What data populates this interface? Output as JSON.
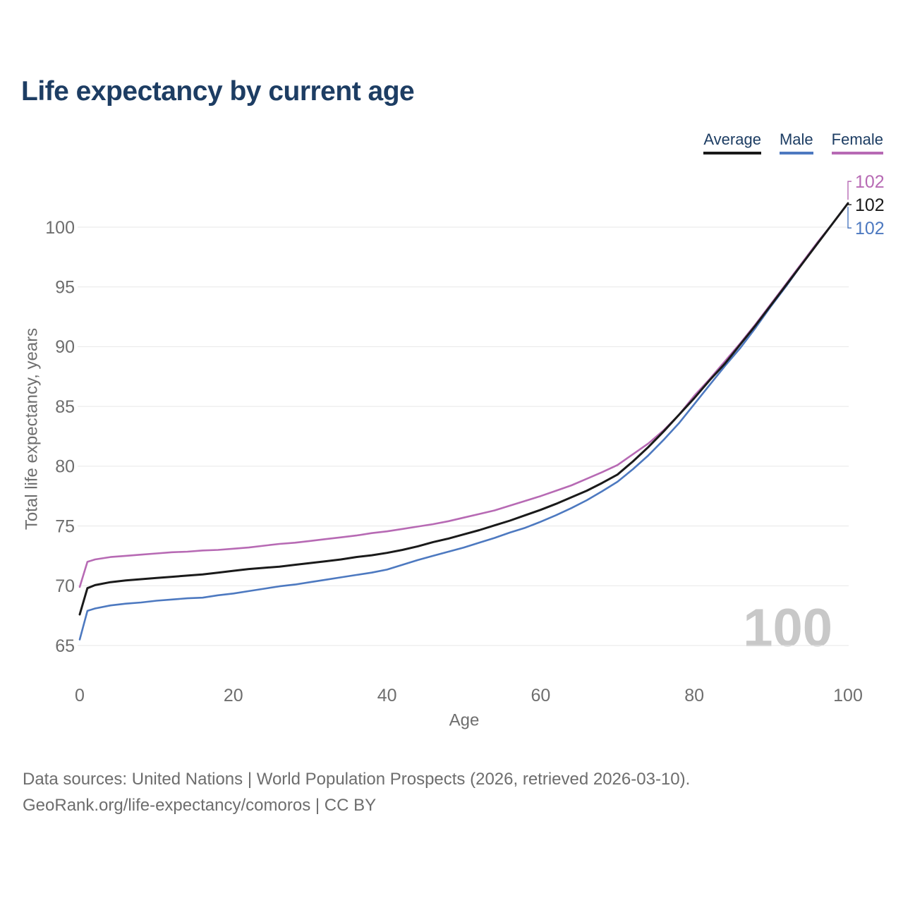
{
  "header": {
    "title": "Life expectancy by current age"
  },
  "legend": {
    "items": [
      {
        "label": "Average",
        "color": "#1a1a1a"
      },
      {
        "label": "Male",
        "color": "#4d79c0"
      },
      {
        "label": "Female",
        "color": "#b76ab4"
      }
    ]
  },
  "chart_data": {
    "type": "line",
    "title": "Life expectancy by current age",
    "xlabel": "Age",
    "ylabel": "Total life expectancy, years",
    "xticks": [
      0,
      20,
      40,
      60,
      80,
      100
    ],
    "yticks": [
      65,
      70,
      75,
      80,
      85,
      90,
      95,
      100
    ],
    "xlim": [
      0,
      100
    ],
    "ylim": [
      65,
      102
    ],
    "grid": "horizontal",
    "legend_position": "top-right",
    "watermark": "100",
    "x": [
      0,
      1,
      2,
      4,
      6,
      8,
      10,
      12,
      14,
      16,
      18,
      20,
      22,
      24,
      26,
      28,
      30,
      32,
      34,
      36,
      38,
      40,
      42,
      44,
      46,
      48,
      50,
      52,
      54,
      56,
      58,
      60,
      62,
      64,
      66,
      68,
      70,
      72,
      74,
      76,
      78,
      80,
      82,
      84,
      86,
      88,
      90,
      92,
      94,
      96,
      98,
      100
    ],
    "series": [
      {
        "name": "Average",
        "color": "#1a1a1a",
        "end_label": "102",
        "values": [
          67.6,
          69.8,
          70.05,
          70.3,
          70.45,
          70.55,
          70.65,
          70.75,
          70.85,
          70.95,
          71.1,
          71.25,
          71.4,
          71.5,
          71.6,
          71.75,
          71.9,
          72.05,
          72.2,
          72.4,
          72.55,
          72.75,
          73.0,
          73.3,
          73.65,
          73.95,
          74.3,
          74.65,
          75.05,
          75.45,
          75.9,
          76.35,
          76.85,
          77.4,
          77.95,
          78.6,
          79.3,
          80.4,
          81.6,
          82.9,
          84.3,
          85.7,
          87.2,
          88.6,
          90.2,
          91.8,
          93.5,
          95.2,
          96.9,
          98.6,
          100.3,
          102
        ]
      },
      {
        "name": "Male",
        "color": "#4d79c0",
        "end_label": "102",
        "values": [
          65.5,
          67.9,
          68.1,
          68.35,
          68.5,
          68.6,
          68.75,
          68.85,
          68.95,
          69.0,
          69.2,
          69.35,
          69.55,
          69.75,
          69.95,
          70.1,
          70.3,
          70.5,
          70.7,
          70.9,
          71.1,
          71.35,
          71.75,
          72.15,
          72.5,
          72.85,
          73.2,
          73.6,
          74.0,
          74.45,
          74.85,
          75.35,
          75.9,
          76.5,
          77.15,
          77.9,
          78.7,
          79.75,
          80.9,
          82.2,
          83.6,
          85.2,
          86.8,
          88.4,
          89.9,
          91.6,
          93.4,
          95.1,
          96.9,
          98.6,
          100.3,
          102
        ]
      },
      {
        "name": "Female",
        "color": "#b76ab4",
        "end_label": "102",
        "values": [
          69.9,
          72.0,
          72.2,
          72.4,
          72.5,
          72.6,
          72.7,
          72.8,
          72.85,
          72.95,
          73.0,
          73.1,
          73.2,
          73.35,
          73.5,
          73.6,
          73.75,
          73.9,
          74.05,
          74.2,
          74.4,
          74.55,
          74.75,
          74.95,
          75.15,
          75.4,
          75.7,
          76.0,
          76.3,
          76.7,
          77.1,
          77.5,
          77.95,
          78.4,
          78.95,
          79.5,
          80.1,
          81.0,
          81.9,
          83.0,
          84.3,
          85.9,
          87.3,
          88.8,
          90.3,
          91.9,
          93.6,
          95.3,
          97.0,
          98.7,
          100.3,
          102
        ]
      }
    ]
  },
  "footer": {
    "line1": "Data sources: United Nations | World Population Prospects (2026, retrieved 2026-03-10).",
    "line2": "GeoRank.org/life-expectancy/comoros | CC BY"
  }
}
